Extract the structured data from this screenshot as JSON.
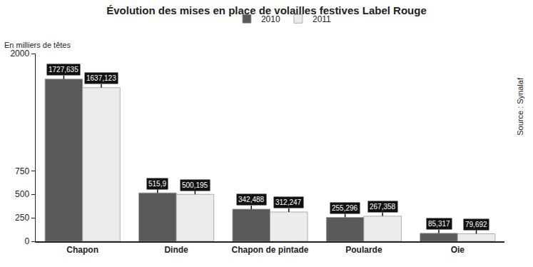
{
  "chart_data": {
    "type": "bar",
    "title": "Évolution des mises en place de volailles festives Label Rouge",
    "ylabel": "En milliers de têtes",
    "categories": [
      "Chapon",
      "Dinde",
      "Chapon de pintade",
      "Poularde",
      "Oie"
    ],
    "series": [
      {
        "name": "2010",
        "color": "#595959",
        "values": [
          1727.635,
          515.9,
          342.488,
          255.296,
          85.317
        ],
        "value_labels": [
          "1727,635",
          "515,9",
          "342,488",
          "255,296",
          "85,317"
        ]
      },
      {
        "name": "2011",
        "color": "#ececec",
        "values": [
          1637.123,
          500.195,
          312.247,
          267.358,
          79.692
        ],
        "value_labels": [
          "1637,123",
          "500,195",
          "312,247",
          "267,358",
          "79,692"
        ]
      }
    ],
    "ylim": [
      0,
      2000
    ],
    "yticks": [
      0,
      250,
      500,
      750,
      2000
    ],
    "grid": false,
    "legend": "top",
    "data_labels": true,
    "annotations": [
      "Source : Synalaf"
    ]
  }
}
